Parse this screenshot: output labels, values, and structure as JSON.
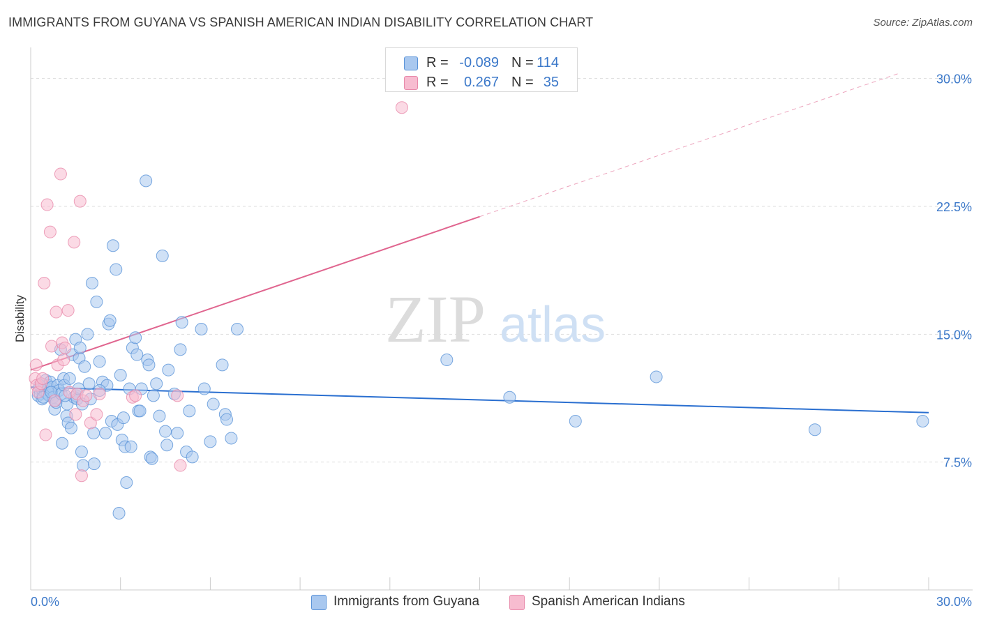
{
  "title": "IMMIGRANTS FROM GUYANA VS SPANISH AMERICAN INDIAN DISABILITY CORRELATION CHART",
  "source": "Source: ZipAtlas.com",
  "watermark": {
    "zip": "ZIP",
    "atlas": "atlas"
  },
  "colors": {
    "blue_fill": "#a9c8ef",
    "blue_stroke": "#5a93d8",
    "blue_line": "#2a6fd0",
    "pink_fill": "#f7bcd0",
    "pink_stroke": "#e889aa",
    "pink_line": "#e0658f",
    "axis_text": "#3b78c9",
    "grid": "#dddddd"
  },
  "stats": [
    {
      "label": "R =",
      "r": "-0.089",
      "n_label": "N =",
      "n": "114",
      "swatch": "#a9c8ef",
      "swatch_border": "#5a93d8"
    },
    {
      "label": "R =",
      "r": "0.267",
      "n_label": "N =",
      "n": "35",
      "swatch": "#f7bcd0",
      "swatch_border": "#e889aa"
    }
  ],
  "legend": [
    {
      "label": "Immigrants from Guyana",
      "color": "#a9c8ef",
      "border": "#5a93d8"
    },
    {
      "label": "Spanish American Indians",
      "color": "#f7bcd0",
      "border": "#e889aa"
    }
  ],
  "chart_data": {
    "type": "scatter",
    "title": "IMMIGRANTS FROM GUYANA VS SPANISH AMERICAN INDIAN DISABILITY CORRELATION CHART",
    "xlabel": "",
    "ylabel": "Disability",
    "xlim": [
      0,
      30
    ],
    "ylim": [
      0,
      31.5
    ],
    "x_tick_labels": [
      {
        "value": 0,
        "label": "0.0%"
      },
      {
        "value": 30,
        "label": "30.0%"
      }
    ],
    "y_tick_labels": [
      {
        "value": 7.5,
        "label": "7.5%"
      },
      {
        "value": 15,
        "label": "15.0%"
      },
      {
        "value": 22.5,
        "label": "22.5%"
      },
      {
        "value": 30,
        "label": "30.0%"
      }
    ],
    "grid": true,
    "legend_position": "bottom",
    "series": [
      {
        "name": "Immigrants from Guyana",
        "color": "#a9c8ef",
        "trend": {
          "x": [
            0,
            30
          ],
          "y": [
            11.9,
            10.4
          ],
          "dashed_from": null
        },
        "points": [
          [
            0.25,
            11.4
          ],
          [
            0.28,
            11.8
          ],
          [
            0.32,
            11.5
          ],
          [
            0.35,
            12.1
          ],
          [
            0.38,
            11.2
          ],
          [
            0.4,
            11.7
          ],
          [
            0.45,
            11.9
          ],
          [
            0.48,
            11.6
          ],
          [
            0.5,
            12.3
          ],
          [
            0.55,
            11.5
          ],
          [
            0.58,
            12.0
          ],
          [
            0.6,
            11.8
          ],
          [
            0.62,
            11.4
          ],
          [
            0.65,
            12.2
          ],
          [
            0.7,
            11.6
          ],
          [
            0.72,
            11.9
          ],
          [
            0.75,
            11.3
          ],
          [
            0.8,
            10.6
          ],
          [
            0.82,
            11.1
          ],
          [
            0.85,
            11.0
          ],
          [
            0.9,
            12.0
          ],
          [
            0.95,
            11.7
          ],
          [
            1.0,
            14.1
          ],
          [
            1.02,
            11.5
          ],
          [
            1.05,
            8.6
          ],
          [
            1.1,
            12.4
          ],
          [
            1.12,
            12.0
          ],
          [
            1.2,
            10.2
          ],
          [
            1.22,
            10.9
          ],
          [
            1.25,
            9.8
          ],
          [
            1.3,
            12.4
          ],
          [
            1.35,
            9.5
          ],
          [
            1.4,
            13.8
          ],
          [
            1.45,
            11.3
          ],
          [
            1.5,
            14.7
          ],
          [
            1.52,
            11.4
          ],
          [
            1.55,
            11.2
          ],
          [
            1.6,
            11.8
          ],
          [
            1.62,
            13.6
          ],
          [
            1.65,
            14.2
          ],
          [
            1.7,
            8.1
          ],
          [
            1.72,
            10.9
          ],
          [
            1.75,
            7.3
          ],
          [
            1.8,
            13.1
          ],
          [
            1.9,
            15.0
          ],
          [
            1.95,
            12.1
          ],
          [
            2.0,
            11.2
          ],
          [
            2.05,
            18.0
          ],
          [
            2.1,
            9.2
          ],
          [
            2.12,
            7.4
          ],
          [
            2.2,
            16.9
          ],
          [
            2.3,
            13.4
          ],
          [
            2.4,
            12.2
          ],
          [
            2.5,
            9.2
          ],
          [
            2.55,
            12.0
          ],
          [
            2.6,
            15.6
          ],
          [
            2.65,
            15.8
          ],
          [
            2.7,
            9.9
          ],
          [
            2.75,
            20.2
          ],
          [
            2.85,
            18.8
          ],
          [
            2.9,
            9.7
          ],
          [
            2.95,
            4.5
          ],
          [
            3.0,
            12.6
          ],
          [
            3.05,
            8.8
          ],
          [
            3.1,
            10.1
          ],
          [
            3.15,
            8.4
          ],
          [
            3.2,
            6.3
          ],
          [
            3.3,
            11.8
          ],
          [
            3.35,
            8.4
          ],
          [
            3.4,
            14.2
          ],
          [
            3.5,
            14.8
          ],
          [
            3.55,
            13.8
          ],
          [
            3.6,
            10.5
          ],
          [
            3.65,
            10.5
          ],
          [
            3.7,
            11.8
          ],
          [
            3.9,
            13.5
          ],
          [
            3.95,
            13.2
          ],
          [
            4.0,
            7.8
          ],
          [
            4.05,
            7.7
          ],
          [
            4.1,
            11.4
          ],
          [
            4.2,
            12.1
          ],
          [
            4.3,
            10.2
          ],
          [
            4.4,
            19.6
          ],
          [
            4.5,
            9.3
          ],
          [
            4.55,
            8.5
          ],
          [
            4.6,
            12.9
          ],
          [
            4.8,
            11.5
          ],
          [
            4.9,
            9.2
          ],
          [
            5.0,
            14.1
          ],
          [
            5.05,
            15.7
          ],
          [
            5.2,
            8.1
          ],
          [
            5.3,
            10.5
          ],
          [
            5.4,
            7.8
          ],
          [
            5.7,
            15.3
          ],
          [
            5.8,
            11.8
          ],
          [
            6.0,
            8.7
          ],
          [
            6.1,
            10.9
          ],
          [
            6.4,
            13.2
          ],
          [
            6.5,
            10.3
          ],
          [
            6.55,
            10.0
          ],
          [
            6.7,
            8.9
          ],
          [
            6.9,
            15.3
          ],
          [
            2.3,
            11.7
          ],
          [
            3.85,
            24.0
          ],
          [
            13.9,
            13.5
          ],
          [
            16.0,
            11.3
          ],
          [
            18.2,
            9.9
          ],
          [
            20.9,
            12.5
          ],
          [
            26.2,
            9.4
          ],
          [
            29.8,
            9.9
          ],
          [
            0.3,
            12.0
          ],
          [
            1.15,
            11.4
          ],
          [
            0.42,
            11.3
          ],
          [
            0.68,
            11.6
          ]
        ]
      },
      {
        "name": "Spanish American Indians",
        "color": "#f7bcd0",
        "trend": {
          "x": [
            0,
            15
          ],
          "y": [
            12.9,
            21.9
          ],
          "dashed_to": [
            29.0,
            30.3
          ]
        },
        "points": [
          [
            0.15,
            12.4
          ],
          [
            0.18,
            13.2
          ],
          [
            0.2,
            12.0
          ],
          [
            0.25,
            11.6
          ],
          [
            0.35,
            12.1
          ],
          [
            0.4,
            12.4
          ],
          [
            0.45,
            18.0
          ],
          [
            0.5,
            9.1
          ],
          [
            0.55,
            22.6
          ],
          [
            0.65,
            21.0
          ],
          [
            0.7,
            14.3
          ],
          [
            0.8,
            11.1
          ],
          [
            0.85,
            16.3
          ],
          [
            0.9,
            13.2
          ],
          [
            1.0,
            24.4
          ],
          [
            1.05,
            14.5
          ],
          [
            1.1,
            13.5
          ],
          [
            1.15,
            14.2
          ],
          [
            1.25,
            16.4
          ],
          [
            1.3,
            11.6
          ],
          [
            1.45,
            20.4
          ],
          [
            1.5,
            10.3
          ],
          [
            1.55,
            11.5
          ],
          [
            1.65,
            22.8
          ],
          [
            1.7,
            6.7
          ],
          [
            1.75,
            11.1
          ],
          [
            1.85,
            11.4
          ],
          [
            2.0,
            9.8
          ],
          [
            2.2,
            10.3
          ],
          [
            2.3,
            11.5
          ],
          [
            3.4,
            11.3
          ],
          [
            3.5,
            11.4
          ],
          [
            4.9,
            11.4
          ],
          [
            5.0,
            7.3
          ],
          [
            12.4,
            28.3
          ]
        ]
      }
    ]
  }
}
